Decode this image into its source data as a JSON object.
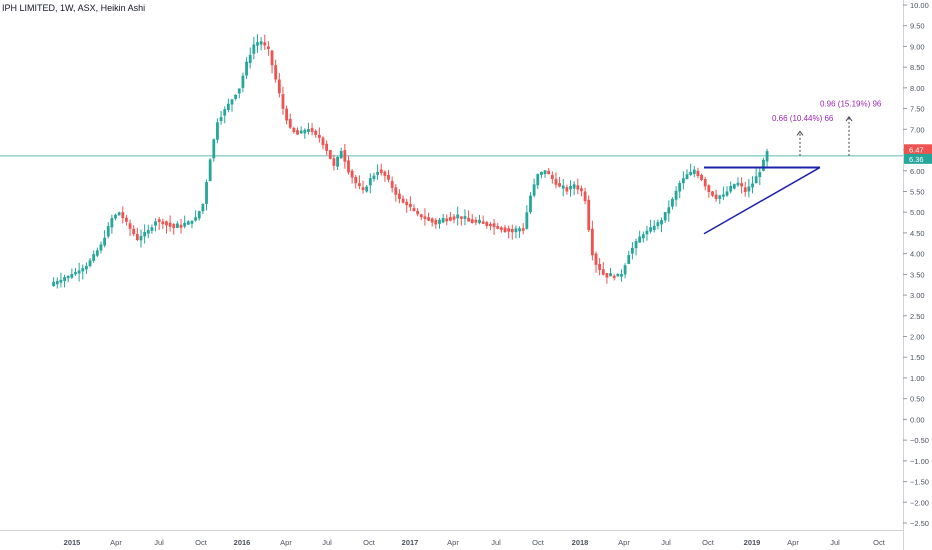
{
  "legend": {
    "symbol": "IPH LIMITED",
    "interval": "1W",
    "exchange": "ASX",
    "chart_style": "Heikin Ashi"
  },
  "colors": {
    "up": "#26a69a",
    "down": "#ef5350",
    "hline": "#26a69a",
    "trendline": "#1e22aa",
    "annotation": "#9c27b0",
    "last_price_bg": "#26a69a",
    "upper_label_bg": "#ef5350",
    "grid_text": "#4c525e"
  },
  "price_labels": {
    "upper": "6.47",
    "last": "6.36"
  },
  "annotations": [
    {
      "text": "0.66 (10.44%) 66"
    },
    {
      "text": "0.96 (15.19%) 96"
    }
  ],
  "chart_data": {
    "type": "candlestick",
    "title": "IPH LIMITED, 1W, ASX, Heikin Ashi",
    "yrange": [
      -2.6,
      10.1
    ],
    "yticks": [
      "10.00",
      "9.50",
      "9.00",
      "8.50",
      "8.00",
      "7.50",
      "7.00",
      "6.50",
      "6.00",
      "5.50",
      "5.00",
      "4.50",
      "4.00",
      "3.50",
      "3.00",
      "2.50",
      "2.00",
      "1.50",
      "1.00",
      "0.50",
      "0.00",
      "−0.50",
      "−1.00",
      "−1.50",
      "−2.00",
      "−2.50"
    ],
    "xticks": [
      "2015",
      "Apr",
      "Jul",
      "Oct",
      "2016",
      "Apr",
      "Jul",
      "Oct",
      "2017",
      "Apr",
      "Jul",
      "Oct",
      "2018",
      "Apr",
      "Jul",
      "Oct",
      "2019",
      "Apr",
      "Jul",
      "Oct"
    ],
    "horizontal_line_value": 6.36,
    "triangle": {
      "resistance": [
        6.08,
        6.08
      ],
      "support_start": 4.48,
      "apex": 6.08
    },
    "price_path": [
      [
        0,
        3.25
      ],
      [
        5,
        3.45
      ],
      [
        10,
        3.7
      ],
      [
        14,
        4.2
      ],
      [
        17,
        4.85
      ],
      [
        19,
        5.0
      ],
      [
        22,
        4.6
      ],
      [
        24,
        4.35
      ],
      [
        27,
        4.55
      ],
      [
        29,
        4.8
      ],
      [
        31,
        4.75
      ],
      [
        34,
        4.65
      ],
      [
        37,
        4.7
      ],
      [
        40,
        4.85
      ],
      [
        42,
        5.2
      ],
      [
        44,
        6.3
      ],
      [
        46,
        7.2
      ],
      [
        49,
        7.6
      ],
      [
        52,
        8.0
      ],
      [
        54,
        8.6
      ],
      [
        56,
        9.05
      ],
      [
        58,
        9.1
      ],
      [
        60,
        8.9
      ],
      [
        62,
        8.2
      ],
      [
        64,
        7.5
      ],
      [
        66,
        7.0
      ],
      [
        68,
        6.9
      ],
      [
        71,
        7.0
      ],
      [
        74,
        6.8
      ],
      [
        76,
        6.5
      ],
      [
        78,
        6.1
      ],
      [
        80,
        6.5
      ],
      [
        82,
        6.0
      ],
      [
        84,
        5.7
      ],
      [
        86,
        5.5
      ],
      [
        88,
        5.8
      ],
      [
        90,
        6.0
      ],
      [
        92,
        5.9
      ],
      [
        94,
        5.6
      ],
      [
        96,
        5.3
      ],
      [
        98,
        5.2
      ],
      [
        100,
        5.0
      ],
      [
        103,
        4.85
      ],
      [
        106,
        4.75
      ],
      [
        109,
        4.85
      ],
      [
        112,
        4.9
      ],
      [
        115,
        4.8
      ],
      [
        118,
        4.75
      ],
      [
        121,
        4.7
      ],
      [
        124,
        4.6
      ],
      [
        127,
        4.55
      ],
      [
        130,
        4.6
      ],
      [
        132,
        5.4
      ],
      [
        134,
        5.9
      ],
      [
        136,
        6.0
      ],
      [
        138,
        5.8
      ],
      [
        140,
        5.6
      ],
      [
        142,
        5.55
      ],
      [
        144,
        5.65
      ],
      [
        146,
        5.5
      ],
      [
        147,
        5.3
      ],
      [
        148,
        4.6
      ],
      [
        149,
        4.0
      ],
      [
        150,
        3.75
      ],
      [
        152,
        3.5
      ],
      [
        155,
        3.45
      ],
      [
        157,
        3.5
      ],
      [
        159,
        4.0
      ],
      [
        162,
        4.4
      ],
      [
        165,
        4.6
      ],
      [
        168,
        4.8
      ],
      [
        171,
        5.3
      ],
      [
        173,
        5.7
      ],
      [
        175,
        5.9
      ],
      [
        177,
        6.0
      ],
      [
        179,
        5.8
      ],
      [
        181,
        5.5
      ],
      [
        183,
        5.35
      ],
      [
        185,
        5.4
      ],
      [
        187,
        5.6
      ],
      [
        189,
        5.7
      ],
      [
        191,
        5.5
      ],
      [
        193,
        5.7
      ],
      [
        195,
        6.0
      ],
      [
        197,
        6.45
      ]
    ]
  }
}
